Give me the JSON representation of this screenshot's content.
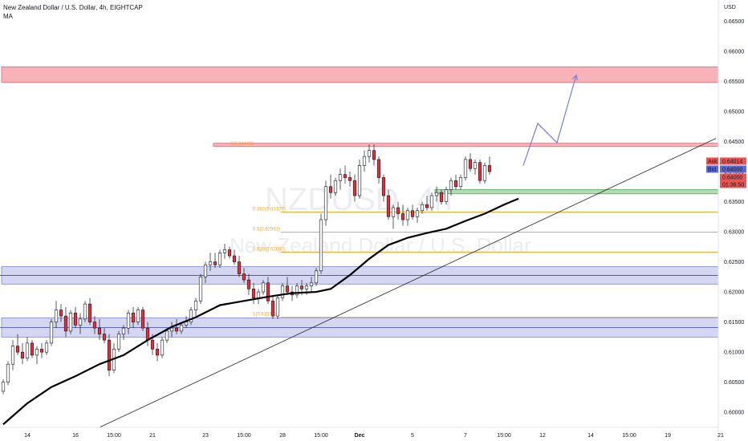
{
  "header": {
    "title": "New Zealand Dollar / U.S. Dollar, 4h, EIGHTCAP",
    "indicator": "MA"
  },
  "watermark": {
    "symbol": "NZDUSD, 4h",
    "name": "New Zealand Dollar / U.S. Dollar"
  },
  "price_axis": {
    "currency": "USD",
    "ask_label": "Ask",
    "ask_value": "0.64014",
    "bid_label": "Bid",
    "bid_value": "0.64000",
    "last_value": "0.64000",
    "countdown": "01:36:50"
  },
  "colors": {
    "up": "#ffffff",
    "down": "#e0303a",
    "candle_border": "#131722",
    "ma": "#000000",
    "resistance_zone": "#f7a6ac",
    "support_zone": "#c5c8ee",
    "demand_zone": "#a5d6a7",
    "fib": "#f0a830",
    "projection": "#7b7fd4",
    "ask_bg": "#ef5350",
    "bid_bg": "#5b6ad8"
  },
  "chart_data": {
    "type": "candlestick",
    "symbol": "NZDUSD",
    "timeframe": "4h",
    "exchange": "EIGHTCAP",
    "ylim": [
      0.5975,
      0.6685
    ],
    "y_ticks": [
      "0.66500",
      "0.66000",
      "0.65500",
      "0.65000",
      "0.64500",
      "0.64000",
      "0.63500",
      "0.63000",
      "0.62500",
      "0.62000",
      "0.61500",
      "0.61000",
      "0.60500",
      "0.60000"
    ],
    "x_ticks": [
      {
        "label": "14",
        "bar": 5
      },
      {
        "label": "16",
        "bar": 15
      },
      {
        "label": "15:00",
        "bar": 23
      },
      {
        "label": "21",
        "bar": 31
      },
      {
        "label": "23",
        "bar": 42
      },
      {
        "label": "15:00",
        "bar": 50
      },
      {
        "label": "28",
        "bar": 58
      },
      {
        "label": "15:00",
        "bar": 66
      },
      {
        "label": "Dec",
        "bar": 74
      },
      {
        "label": "5",
        "bar": 85
      },
      {
        "label": "7",
        "bar": 96
      },
      {
        "label": "15:00",
        "bar": 104
      },
      {
        "label": "12",
        "bar": 112
      },
      {
        "label": "14",
        "bar": 122
      },
      {
        "label": "15:00",
        "bar": 130
      },
      {
        "label": "19",
        "bar": 138
      },
      {
        "label": "21",
        "bar": 149
      },
      {
        "label": "15:00",
        "bar": 157
      }
    ],
    "candles": [
      [
        0.6035,
        0.6055,
        0.603,
        0.605
      ],
      [
        0.605,
        0.6085,
        0.6045,
        0.608
      ],
      [
        0.608,
        0.612,
        0.607,
        0.611
      ],
      [
        0.611,
        0.613,
        0.6095,
        0.61
      ],
      [
        0.61,
        0.6115,
        0.608,
        0.609
      ],
      [
        0.609,
        0.6125,
        0.6085,
        0.6115
      ],
      [
        0.6115,
        0.612,
        0.609,
        0.6095
      ],
      [
        0.6095,
        0.611,
        0.608,
        0.6105
      ],
      [
        0.6105,
        0.6115,
        0.609,
        0.61
      ],
      [
        0.61,
        0.612,
        0.6095,
        0.6115
      ],
      [
        0.6115,
        0.6155,
        0.611,
        0.615
      ],
      [
        0.615,
        0.6185,
        0.614,
        0.617
      ],
      [
        0.617,
        0.618,
        0.615,
        0.616
      ],
      [
        0.616,
        0.6175,
        0.6125,
        0.6135
      ],
      [
        0.6135,
        0.617,
        0.613,
        0.6165
      ],
      [
        0.6165,
        0.6175,
        0.614,
        0.6145
      ],
      [
        0.6145,
        0.6165,
        0.613,
        0.6155
      ],
      [
        0.6155,
        0.6185,
        0.615,
        0.618
      ],
      [
        0.618,
        0.619,
        0.6145,
        0.615
      ],
      [
        0.615,
        0.616,
        0.613,
        0.614
      ],
      [
        0.614,
        0.6155,
        0.612,
        0.613
      ],
      [
        0.613,
        0.614,
        0.6115,
        0.612
      ],
      [
        0.612,
        0.613,
        0.606,
        0.607
      ],
      [
        0.607,
        0.6115,
        0.6065,
        0.6105
      ],
      [
        0.6105,
        0.6135,
        0.61,
        0.613
      ],
      [
        0.613,
        0.6145,
        0.612,
        0.614
      ],
      [
        0.614,
        0.617,
        0.613,
        0.6165
      ],
      [
        0.6165,
        0.6175,
        0.614,
        0.615
      ],
      [
        0.615,
        0.6175,
        0.6145,
        0.617
      ],
      [
        0.617,
        0.6175,
        0.6135,
        0.614
      ],
      [
        0.614,
        0.615,
        0.611,
        0.612
      ],
      [
        0.612,
        0.613,
        0.6095,
        0.6105
      ],
      [
        0.6105,
        0.6115,
        0.6085,
        0.6095
      ],
      [
        0.6095,
        0.6125,
        0.609,
        0.612
      ],
      [
        0.612,
        0.614,
        0.6115,
        0.6135
      ],
      [
        0.6135,
        0.615,
        0.6125,
        0.614
      ],
      [
        0.614,
        0.6155,
        0.613,
        0.6135
      ],
      [
        0.6135,
        0.615,
        0.613,
        0.6145
      ],
      [
        0.6145,
        0.616,
        0.614,
        0.615
      ],
      [
        0.615,
        0.6175,
        0.6145,
        0.617
      ],
      [
        0.617,
        0.619,
        0.616,
        0.6185
      ],
      [
        0.6185,
        0.623,
        0.618,
        0.6225
      ],
      [
        0.6225,
        0.625,
        0.6215,
        0.6245
      ],
      [
        0.6245,
        0.6265,
        0.6235,
        0.625
      ],
      [
        0.625,
        0.6265,
        0.624,
        0.6245
      ],
      [
        0.6245,
        0.627,
        0.624,
        0.6265
      ],
      [
        0.6265,
        0.628,
        0.6255,
        0.627
      ],
      [
        0.627,
        0.6275,
        0.6255,
        0.626
      ],
      [
        0.626,
        0.627,
        0.6245,
        0.625
      ],
      [
        0.625,
        0.626,
        0.6225,
        0.623
      ],
      [
        0.623,
        0.624,
        0.6215,
        0.622
      ],
      [
        0.622,
        0.623,
        0.6195,
        0.6205
      ],
      [
        0.6205,
        0.6215,
        0.618,
        0.619
      ],
      [
        0.619,
        0.6205,
        0.618,
        0.62
      ],
      [
        0.62,
        0.622,
        0.6195,
        0.6215
      ],
      [
        0.6215,
        0.6225,
        0.618,
        0.6185
      ],
      [
        0.6185,
        0.6195,
        0.6155,
        0.616
      ],
      [
        0.616,
        0.6195,
        0.6155,
        0.619
      ],
      [
        0.619,
        0.6215,
        0.6185,
        0.621
      ],
      [
        0.621,
        0.6225,
        0.6195,
        0.62
      ],
      [
        0.62,
        0.621,
        0.6185,
        0.6195
      ],
      [
        0.6195,
        0.6215,
        0.619,
        0.621
      ],
      [
        0.621,
        0.622,
        0.6195,
        0.6205
      ],
      [
        0.6205,
        0.6215,
        0.6195,
        0.621
      ],
      [
        0.621,
        0.6225,
        0.62,
        0.6215
      ],
      [
        0.6215,
        0.624,
        0.621,
        0.6235
      ],
      [
        0.6235,
        0.633,
        0.623,
        0.632
      ],
      [
        0.632,
        0.6385,
        0.631,
        0.6375
      ],
      [
        0.6375,
        0.6395,
        0.6355,
        0.6365
      ],
      [
        0.6365,
        0.639,
        0.636,
        0.6385
      ],
      [
        0.6385,
        0.6405,
        0.637,
        0.6395
      ],
      [
        0.6395,
        0.641,
        0.638,
        0.639
      ],
      [
        0.639,
        0.64,
        0.6375,
        0.6385
      ],
      [
        0.6385,
        0.6395,
        0.635,
        0.636
      ],
      [
        0.636,
        0.642,
        0.6355,
        0.641
      ],
      [
        0.641,
        0.6435,
        0.64,
        0.6425
      ],
      [
        0.6425,
        0.6445,
        0.6415,
        0.6435
      ],
      [
        0.6435,
        0.6445,
        0.641,
        0.642
      ],
      [
        0.642,
        0.6425,
        0.638,
        0.639
      ],
      [
        0.639,
        0.6395,
        0.635,
        0.636
      ],
      [
        0.636,
        0.637,
        0.632,
        0.6325
      ],
      [
        0.6325,
        0.6345,
        0.6305,
        0.634
      ],
      [
        0.634,
        0.635,
        0.632,
        0.633
      ],
      [
        0.633,
        0.6345,
        0.631,
        0.632
      ],
      [
        0.632,
        0.634,
        0.631,
        0.6335
      ],
      [
        0.6335,
        0.6345,
        0.632,
        0.6325
      ],
      [
        0.6325,
        0.634,
        0.6315,
        0.6335
      ],
      [
        0.6335,
        0.635,
        0.633,
        0.6345
      ],
      [
        0.6345,
        0.636,
        0.6335,
        0.634
      ],
      [
        0.634,
        0.6365,
        0.6335,
        0.636
      ],
      [
        0.636,
        0.6375,
        0.635,
        0.6365
      ],
      [
        0.6365,
        0.637,
        0.6345,
        0.635
      ],
      [
        0.635,
        0.6375,
        0.6345,
        0.637
      ],
      [
        0.637,
        0.639,
        0.636,
        0.6385
      ],
      [
        0.6385,
        0.6395,
        0.637,
        0.6375
      ],
      [
        0.6375,
        0.6395,
        0.637,
        0.639
      ],
      [
        0.639,
        0.6425,
        0.6385,
        0.642
      ],
      [
        0.642,
        0.643,
        0.64,
        0.6405
      ],
      [
        0.6405,
        0.642,
        0.6395,
        0.6415
      ],
      [
        0.6415,
        0.642,
        0.638,
        0.6385
      ],
      [
        0.6385,
        0.6415,
        0.638,
        0.641
      ],
      [
        0.641,
        0.6425,
        0.6395,
        0.64
      ]
    ],
    "ma": [
      [
        0,
        0.598
      ],
      [
        5,
        0.6015
      ],
      [
        10,
        0.6042
      ],
      [
        15,
        0.606
      ],
      [
        20,
        0.608
      ],
      [
        25,
        0.6095
      ],
      [
        30,
        0.612
      ],
      [
        35,
        0.6142
      ],
      [
        40,
        0.6158
      ],
      [
        45,
        0.6178
      ],
      [
        50,
        0.6185
      ],
      [
        55,
        0.6192
      ],
      [
        60,
        0.6198
      ],
      [
        65,
        0.62
      ],
      [
        68,
        0.6205
      ],
      [
        72,
        0.6228
      ],
      [
        76,
        0.6255
      ],
      [
        80,
        0.6278
      ],
      [
        84,
        0.629
      ],
      [
        88,
        0.6298
      ],
      [
        92,
        0.6305
      ],
      [
        96,
        0.6318
      ],
      [
        100,
        0.633
      ],
      [
        104,
        0.6345
      ],
      [
        107,
        0.6355
      ]
    ],
    "zones": [
      {
        "id": "resistance-zone",
        "y1": 0.6548,
        "y2": 0.6574,
        "color_key": "resistance_zone",
        "start": 0
      },
      {
        "id": "support-zone-upper",
        "y1": 0.6213,
        "y2": 0.6242,
        "color_key": "support_zone",
        "start": 0
      },
      {
        "id": "support-zone-lower",
        "y1": 0.6125,
        "y2": 0.6157,
        "color_key": "support_zone",
        "start": 0
      },
      {
        "id": "demand-zone",
        "y1": 0.6363,
        "y2": 0.637,
        "color_key": "demand_zone",
        "start": 90
      },
      {
        "id": "sell-zone",
        "y1": 0.6442,
        "y2": 0.6447,
        "color_key": "resistance_zone",
        "start": 44
      }
    ],
    "fib_levels": [
      {
        "label": "0(0.64409)",
        "price": 0.64409
      },
      {
        "label": "0.382(0.63327)",
        "price": 0.63327
      },
      {
        "label": "0.5(0.62993)",
        "price": 0.62993
      },
      {
        "label": "0.618(0.62660)",
        "price": 0.6266
      },
      {
        "label": "1(0.61579)",
        "price": 0.61579
      }
    ],
    "trendline": [
      [
        20,
        0.5975
      ],
      [
        148,
        0.6455
      ]
    ],
    "projection": [
      [
        108,
        0.641
      ],
      [
        111,
        0.648
      ],
      [
        115,
        0.6448
      ],
      [
        119,
        0.656
      ]
    ]
  }
}
